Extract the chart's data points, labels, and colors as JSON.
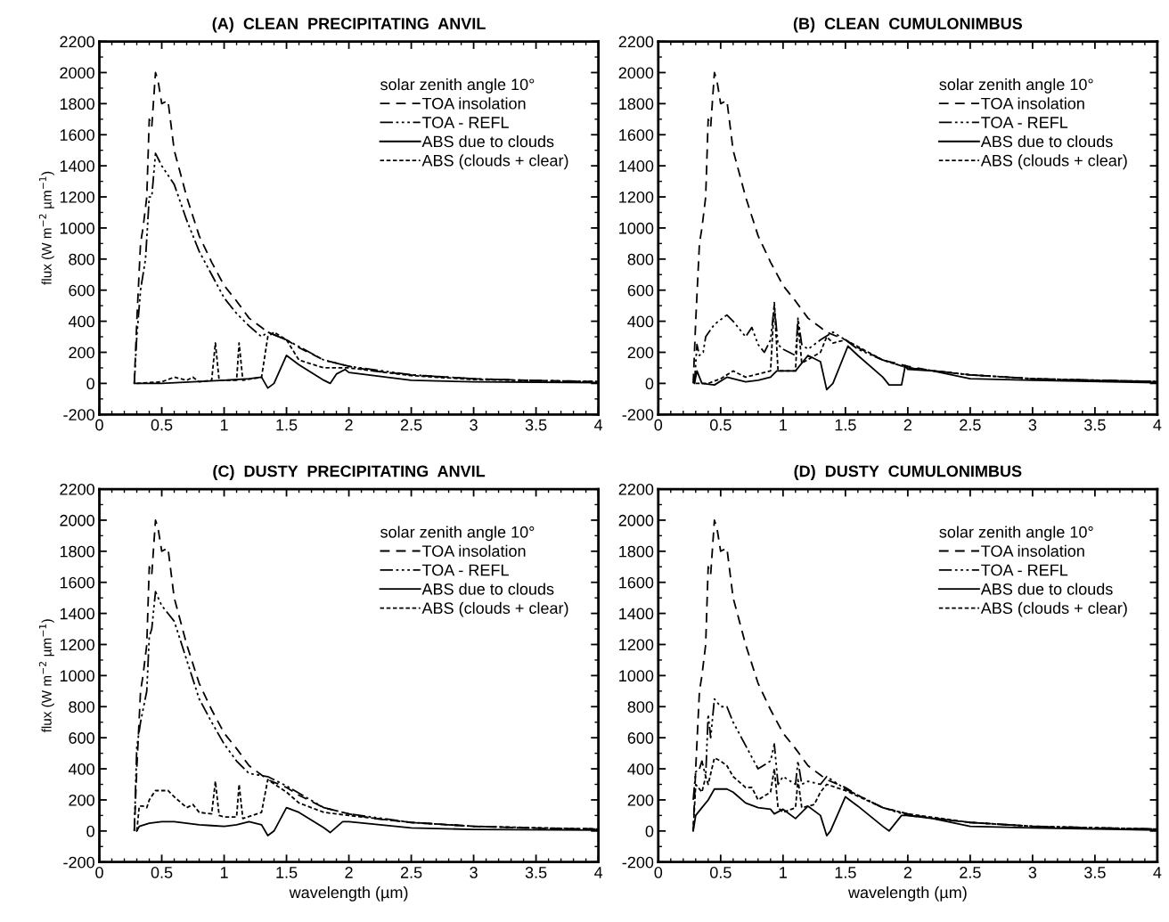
{
  "chart_data": [
    {
      "type": "line",
      "title": "(A)  CLEAN  PRECIPITATING  ANVIL",
      "ylabel": "flux (W m$^{−2}$ µm$^{−1}$)",
      "legend_title": "solar zenith angle 10°",
      "legend": "top right",
      "grid": false,
      "xlim": [
        0,
        4
      ],
      "ylim": [
        -200,
        2200
      ],
      "xticks": [
        0,
        0.5,
        1,
        1.5,
        2,
        2.5,
        3,
        3.5,
        4
      ],
      "yticks": [
        -200,
        0,
        200,
        400,
        600,
        800,
        1000,
        1200,
        1400,
        1600,
        1800,
        2000,
        2200
      ],
      "series": [
        {
          "name": "TOA insolation",
          "color": "#000000",
          "line_style": "dashed",
          "x": [
            0.28,
            0.3,
            0.33,
            0.35,
            0.38,
            0.4,
            0.42,
            0.45,
            0.47,
            0.5,
            0.55,
            0.6,
            0.7,
            0.8,
            0.9,
            1.0,
            1.1,
            1.2,
            1.3,
            1.35,
            1.5,
            1.6,
            1.8,
            2.0,
            2.2,
            2.5,
            3.0,
            3.5,
            4.0
          ],
          "values": [
            0,
            400,
            900,
            1000,
            1200,
            1700,
            1650,
            2000,
            1950,
            1800,
            1820,
            1500,
            1200,
            950,
            780,
            630,
            530,
            420,
            360,
            330,
            280,
            230,
            150,
            110,
            80,
            55,
            30,
            18,
            12
          ]
        },
        {
          "name": "TOA - REFL",
          "color": "#000000",
          "line_style": "dashdotdot",
          "x": [
            0.28,
            0.3,
            0.33,
            0.37,
            0.4,
            0.42,
            0.45,
            0.5,
            0.6,
            0.7,
            0.8,
            0.9,
            1.0,
            1.1,
            1.2,
            1.3,
            1.35,
            1.5,
            1.8,
            2.0,
            2.5,
            3.0,
            3.5,
            4.0
          ],
          "values": [
            0,
            300,
            600,
            800,
            1200,
            1200,
            1480,
            1400,
            1280,
            1050,
            850,
            700,
            550,
            450,
            370,
            300,
            330,
            280,
            150,
            110,
            55,
            30,
            18,
            12
          ]
        },
        {
          "name": "ABS due to clouds",
          "color": "#000000",
          "line_style": "solid",
          "x": [
            0.28,
            0.5,
            1.0,
            1.2,
            1.3,
            1.35,
            1.4,
            1.5,
            1.6,
            1.8,
            1.85,
            1.9,
            1.97,
            2.0,
            2.3,
            2.5,
            3.0,
            4.0
          ],
          "values": [
            0,
            0,
            20,
            30,
            40,
            -30,
            0,
            180,
            120,
            20,
            0,
            60,
            90,
            70,
            40,
            20,
            10,
            5
          ]
        },
        {
          "name": "ABS (clouds + clear)",
          "color": "#000000",
          "line_style": "dotted",
          "x": [
            0.3,
            0.5,
            0.6,
            0.7,
            0.75,
            0.8,
            0.9,
            0.93,
            0.96,
            1.1,
            1.12,
            1.15,
            1.3,
            1.35,
            1.4,
            1.5,
            1.6,
            1.8,
            2.0,
            2.5,
            3.0,
            4.0
          ],
          "values": [
            0,
            10,
            40,
            20,
            40,
            10,
            20,
            260,
            20,
            20,
            260,
            20,
            40,
            300,
            330,
            280,
            150,
            100,
            100,
            50,
            25,
            10
          ]
        }
      ]
    },
    {
      "type": "line",
      "title": "(B)  CLEAN  CUMULONIMBUS",
      "legend_title": "solar zenith angle 10°",
      "legend": "top right",
      "grid": false,
      "xlim": [
        0,
        4
      ],
      "ylim": [
        -200,
        2200
      ],
      "xticks": [
        0,
        0.5,
        1,
        1.5,
        2,
        2.5,
        3,
        3.5,
        4
      ],
      "yticks": [
        -200,
        0,
        200,
        400,
        600,
        800,
        1000,
        1200,
        1400,
        1600,
        1800,
        2000,
        2200
      ],
      "series": [
        {
          "name": "TOA insolation",
          "color": "#000000",
          "line_style": "dashed",
          "x": [
            0.28,
            0.3,
            0.33,
            0.35,
            0.38,
            0.4,
            0.42,
            0.45,
            0.47,
            0.5,
            0.55,
            0.6,
            0.7,
            0.8,
            0.9,
            1.0,
            1.1,
            1.2,
            1.3,
            1.35,
            1.5,
            1.6,
            1.8,
            2.0,
            2.2,
            2.5,
            3.0,
            3.5,
            4.0
          ],
          "values": [
            0,
            400,
            900,
            1000,
            1200,
            1700,
            1650,
            2000,
            1950,
            1800,
            1820,
            1500,
            1200,
            950,
            780,
            630,
            530,
            420,
            360,
            330,
            280,
            230,
            150,
            110,
            80,
            55,
            30,
            18,
            12
          ]
        },
        {
          "name": "TOA - REFL",
          "color": "#000000",
          "line_style": "dashdotdot",
          "x": [
            0.29,
            0.31,
            0.33,
            0.36,
            0.38,
            0.45,
            0.55,
            0.6,
            0.7,
            0.75,
            0.8,
            0.85,
            0.9,
            0.93,
            0.96,
            1.0,
            1.1,
            1.12,
            1.15,
            1.2,
            1.3,
            1.4,
            1.5,
            1.6,
            1.8,
            2.0,
            2.5,
            3.0,
            4.0
          ],
          "values": [
            0,
            250,
            180,
            200,
            300,
            380,
            440,
            400,
            300,
            360,
            250,
            200,
            280,
            500,
            250,
            220,
            180,
            420,
            250,
            220,
            280,
            330,
            280,
            220,
            150,
            100,
            55,
            30,
            12
          ]
        },
        {
          "name": "ABS due to clouds",
          "color": "#000000",
          "line_style": "solid",
          "x": [
            0.29,
            0.31,
            0.35,
            0.45,
            0.55,
            0.7,
            0.8,
            0.9,
            0.95,
            1.1,
            1.2,
            1.3,
            1.35,
            1.4,
            1.52,
            1.6,
            1.8,
            1.85,
            1.95,
            1.98,
            2.0,
            2.2,
            2.5,
            3.0,
            4.0
          ],
          "values": [
            0,
            80,
            0,
            -10,
            40,
            10,
            20,
            40,
            80,
            80,
            180,
            140,
            -40,
            0,
            240,
            180,
            40,
            -10,
            -10,
            115,
            90,
            80,
            30,
            20,
            5
          ]
        },
        {
          "name": "ABS (clouds + clear)",
          "color": "#000000",
          "line_style": "dotted",
          "x": [
            0.3,
            0.4,
            0.5,
            0.6,
            0.7,
            0.8,
            0.9,
            0.93,
            0.96,
            1.1,
            1.12,
            1.15,
            1.3,
            1.35,
            1.4,
            1.5,
            1.8,
            2.0,
            2.5,
            3.0,
            4.0
          ],
          "values": [
            0,
            0,
            30,
            80,
            40,
            60,
            80,
            520,
            80,
            80,
            400,
            130,
            200,
            300,
            260,
            280,
            150,
            100,
            55,
            30,
            12
          ]
        }
      ]
    },
    {
      "type": "line",
      "title": "(C)  DUSTY  PRECIPITATING  ANVIL",
      "xlabel": "wavelength (µm)",
      "ylabel": "flux (W m$^{−2}$ µm$^{−1}$)",
      "legend_title": "solar zenith angle 10°",
      "legend": "top right",
      "grid": false,
      "xlim": [
        0,
        4
      ],
      "ylim": [
        -200,
        2200
      ],
      "xticks": [
        0,
        0.5,
        1,
        1.5,
        2,
        2.5,
        3,
        3.5,
        4
      ],
      "yticks": [
        -200,
        0,
        200,
        400,
        600,
        800,
        1000,
        1200,
        1400,
        1600,
        1800,
        2000,
        2200
      ],
      "series": [
        {
          "name": "TOA insolation",
          "color": "#000000",
          "line_style": "dashed",
          "x": [
            0.28,
            0.3,
            0.33,
            0.35,
            0.38,
            0.4,
            0.42,
            0.45,
            0.47,
            0.5,
            0.55,
            0.6,
            0.7,
            0.8,
            0.9,
            1.0,
            1.1,
            1.2,
            1.3,
            1.35,
            1.5,
            1.6,
            1.8,
            2.0,
            2.2,
            2.5,
            3.0,
            3.5,
            4.0
          ],
          "values": [
            0,
            400,
            900,
            1000,
            1200,
            1700,
            1650,
            2000,
            1950,
            1800,
            1820,
            1500,
            1200,
            950,
            780,
            630,
            530,
            420,
            360,
            330,
            280,
            230,
            150,
            110,
            80,
            55,
            30,
            18,
            12
          ]
        },
        {
          "name": "TOA - REFL",
          "color": "#000000",
          "line_style": "dashdotdot",
          "x": [
            0.28,
            0.3,
            0.33,
            0.38,
            0.4,
            0.42,
            0.45,
            0.5,
            0.6,
            0.7,
            0.8,
            0.9,
            1.0,
            1.1,
            1.2,
            1.35,
            1.5,
            1.8,
            2.0,
            2.5,
            3.0,
            3.5,
            4.0
          ],
          "values": [
            0,
            540,
            700,
            900,
            1250,
            1300,
            1540,
            1450,
            1350,
            1100,
            850,
            700,
            560,
            450,
            370,
            350,
            290,
            150,
            110,
            55,
            30,
            18,
            12
          ]
        },
        {
          "name": "ABS due to clouds",
          "color": "#000000",
          "line_style": "solid",
          "x": [
            0.3,
            0.32,
            0.4,
            0.5,
            0.6,
            0.8,
            0.9,
            1.0,
            1.1,
            1.2,
            1.3,
            1.35,
            1.4,
            1.5,
            1.6,
            1.8,
            1.85,
            1.95,
            2.0,
            2.5,
            3.0,
            4.0
          ],
          "values": [
            0,
            30,
            50,
            60,
            60,
            40,
            35,
            30,
            40,
            60,
            40,
            -30,
            0,
            150,
            120,
            20,
            -10,
            60,
            60,
            20,
            10,
            5
          ]
        },
        {
          "name": "ABS (clouds + clear)",
          "color": "#000000",
          "line_style": "dotted",
          "x": [
            0.3,
            0.32,
            0.35,
            0.38,
            0.4,
            0.45,
            0.55,
            0.6,
            0.7,
            0.75,
            0.8,
            0.9,
            0.93,
            0.96,
            1.0,
            1.1,
            1.12,
            1.15,
            1.3,
            1.35,
            1.5,
            1.6,
            1.8,
            2.0,
            2.5,
            3.0,
            4.0
          ],
          "values": [
            0,
            160,
            160,
            150,
            200,
            260,
            260,
            220,
            150,
            170,
            120,
            110,
            320,
            100,
            90,
            90,
            300,
            80,
            120,
            330,
            250,
            180,
            120,
            100,
            55,
            30,
            12
          ]
        }
      ]
    },
    {
      "type": "line",
      "title": "(D)  DUSTY  CUMULONIMBUS",
      "xlabel": "wavelength (µm)",
      "legend_title": "solar zenith angle 10°",
      "legend": "top right",
      "grid": false,
      "xlim": [
        0,
        4
      ],
      "ylim": [
        -200,
        2200
      ],
      "xticks": [
        0,
        0.5,
        1,
        1.5,
        2,
        2.5,
        3,
        3.5,
        4
      ],
      "yticks": [
        -200,
        0,
        200,
        400,
        600,
        800,
        1000,
        1200,
        1400,
        1600,
        1800,
        2000,
        2200
      ],
      "series": [
        {
          "name": "TOA insolation",
          "color": "#000000",
          "line_style": "dashed",
          "x": [
            0.28,
            0.3,
            0.33,
            0.35,
            0.38,
            0.4,
            0.42,
            0.45,
            0.47,
            0.5,
            0.55,
            0.6,
            0.7,
            0.8,
            0.9,
            1.0,
            1.1,
            1.2,
            1.3,
            1.35,
            1.5,
            1.6,
            1.8,
            2.0,
            2.2,
            2.5,
            3.0,
            3.5,
            4.0
          ],
          "values": [
            0,
            400,
            900,
            1000,
            1200,
            1700,
            1650,
            2000,
            1950,
            1800,
            1820,
            1500,
            1200,
            950,
            780,
            630,
            530,
            420,
            360,
            330,
            280,
            230,
            150,
            110,
            80,
            55,
            30,
            18,
            12
          ]
        },
        {
          "name": "TOA - REFL",
          "color": "#000000",
          "line_style": "dashdotdot",
          "x": [
            0.28,
            0.3,
            0.33,
            0.35,
            0.38,
            0.4,
            0.42,
            0.45,
            0.5,
            0.55,
            0.6,
            0.7,
            0.8,
            0.9,
            0.93,
            0.96,
            1.0,
            1.1,
            1.12,
            1.15,
            1.2,
            1.3,
            1.35,
            1.5,
            1.8,
            2.0,
            2.5,
            3.0,
            4.0
          ],
          "values": [
            200,
            380,
            400,
            450,
            350,
            750,
            600,
            850,
            800,
            800,
            700,
            550,
            400,
            450,
            560,
            300,
            350,
            300,
            450,
            300,
            320,
            300,
            350,
            270,
            150,
            100,
            55,
            30,
            12
          ]
        },
        {
          "name": "ABS due to clouds",
          "color": "#000000",
          "line_style": "solid",
          "x": [
            0.28,
            0.3,
            0.35,
            0.4,
            0.45,
            0.55,
            0.6,
            0.7,
            0.8,
            0.9,
            0.93,
            1.0,
            1.1,
            1.2,
            1.3,
            1.35,
            1.38,
            1.5,
            1.6,
            1.8,
            1.85,
            1.95,
            2.0,
            2.2,
            2.5,
            3.0,
            4.0
          ],
          "values": [
            0,
            100,
            150,
            200,
            270,
            270,
            250,
            180,
            150,
            140,
            110,
            140,
            80,
            160,
            100,
            -30,
            0,
            220,
            160,
            30,
            0,
            100,
            100,
            80,
            30,
            20,
            5
          ]
        },
        {
          "name": "ABS (clouds + clear)",
          "color": "#000000",
          "line_style": "dotted",
          "x": [
            0.28,
            0.3,
            0.35,
            0.38,
            0.4,
            0.45,
            0.5,
            0.55,
            0.6,
            0.7,
            0.75,
            0.8,
            0.9,
            0.93,
            0.96,
            1.0,
            1.1,
            1.12,
            1.15,
            1.25,
            1.3,
            1.35,
            1.5,
            1.8,
            2.0,
            2.5,
            3.0,
            4.0
          ],
          "values": [
            0,
            300,
            250,
            350,
            300,
            470,
            450,
            420,
            350,
            280,
            280,
            200,
            250,
            400,
            150,
            120,
            150,
            330,
            150,
            170,
            250,
            300,
            260,
            150,
            110,
            55,
            30,
            12
          ]
        }
      ]
    }
  ]
}
